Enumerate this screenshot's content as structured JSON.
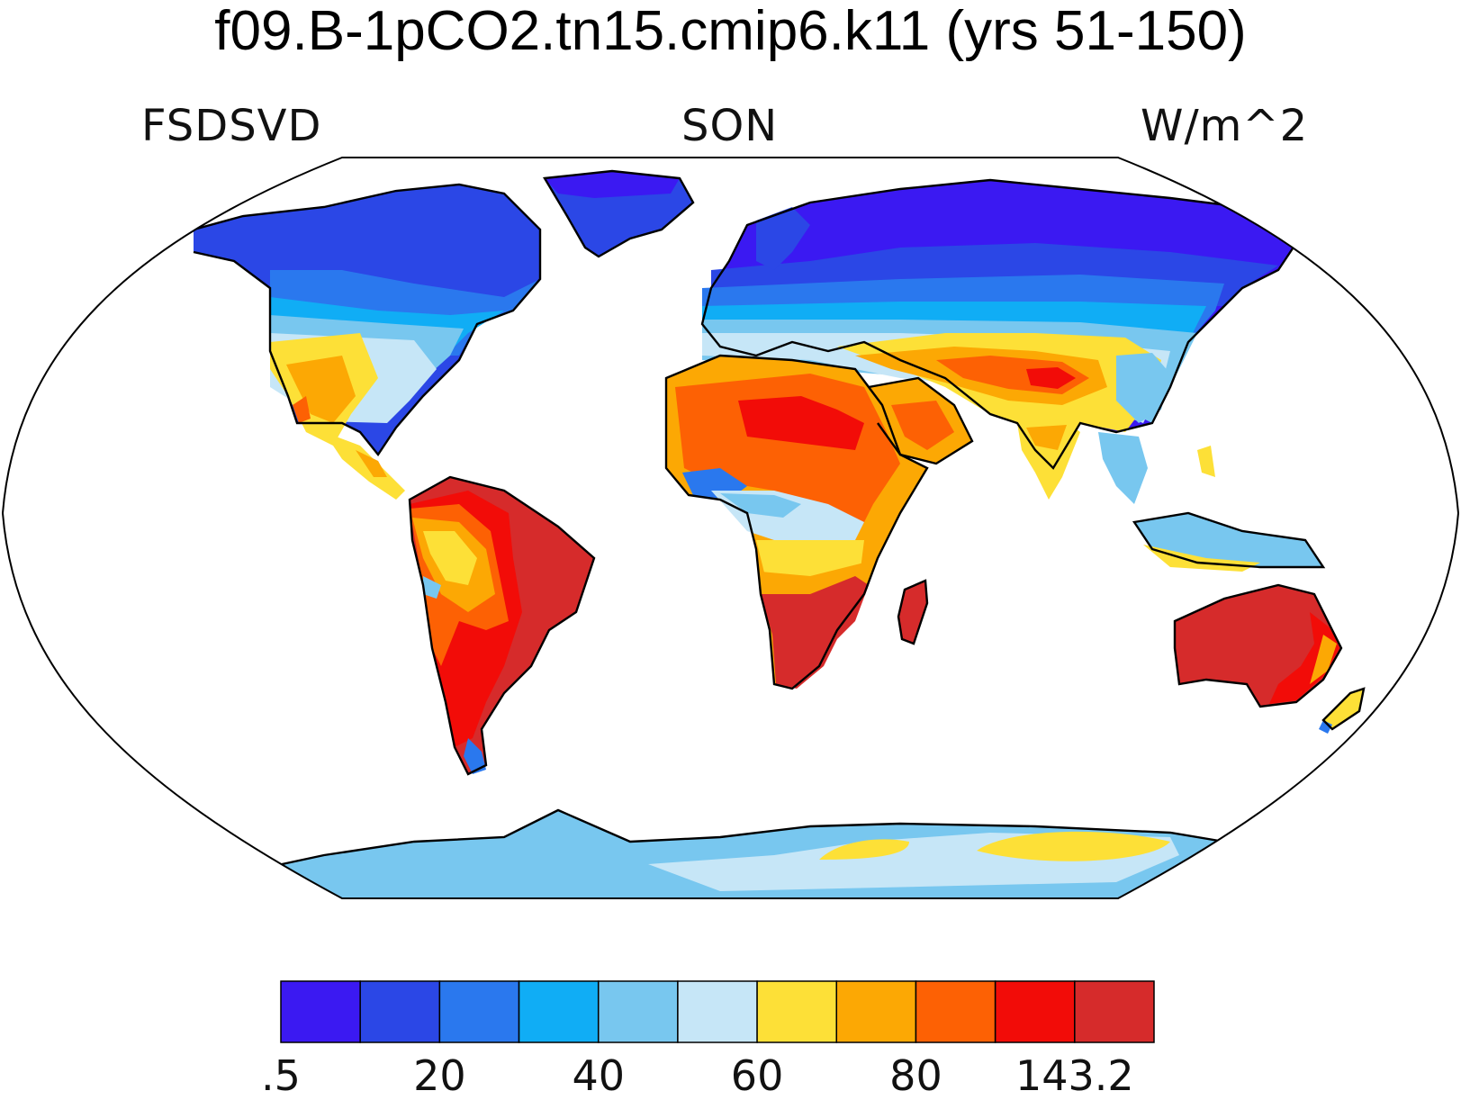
{
  "title": "f09.B-1pCO2.tn15.cmip6.k11 (yrs 51-150)",
  "subtitle": {
    "left": "FSDSVD",
    "center": "SON",
    "right": "W/m^2"
  },
  "colorbar": {
    "colors": [
      "#3b19f2",
      "#2b47e6",
      "#2a78ee",
      "#10adf5",
      "#78c7ef",
      "#c6e6f7",
      "#fde037",
      "#fca804",
      "#fd6104",
      "#f20c08",
      "#d62b2b"
    ],
    "labels": [
      ".5",
      "20",
      "40",
      "60",
      "80",
      "143.2"
    ]
  },
  "map": {
    "projection": "Robinson",
    "background": "#ffffff",
    "coastline_color": "#000000"
  }
}
